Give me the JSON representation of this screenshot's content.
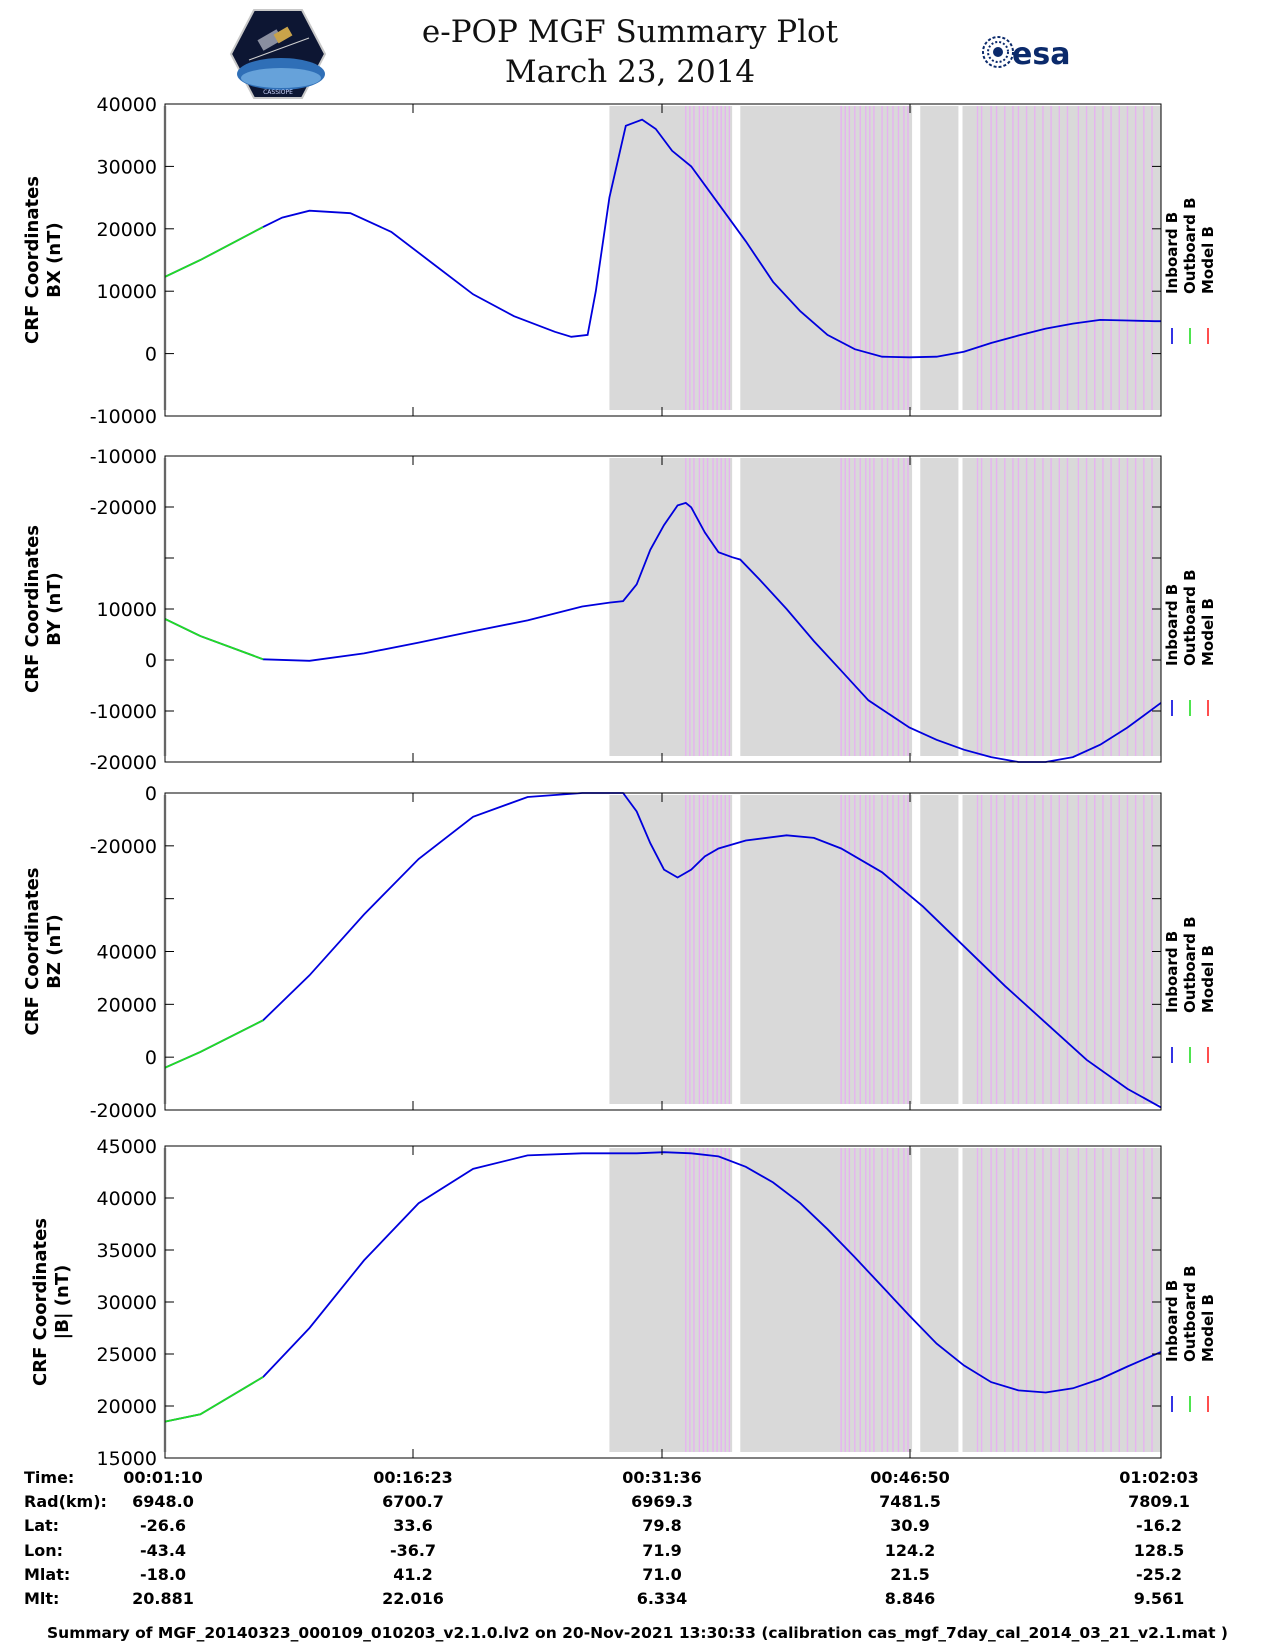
{
  "header": {
    "title": "e-POP MGF Summary Plot",
    "date": "March 23, 2014",
    "left_logo": "cassiope-mission-logo",
    "right_logo": "esa-logo",
    "esa_text": "esa"
  },
  "colors": {
    "inboard": "#0000dd",
    "outboard": "#22dd22",
    "model": "#ff2222",
    "shade": "#d9d9d9",
    "stripe": "#e6b3f0"
  },
  "chart_data": [
    {
      "type": "line",
      "ylabel_line1": "CRF Coordinates",
      "ylabel_line2": "BX (nT)",
      "ylim": [
        -10000,
        40000
      ],
      "yticks": [
        "40000",
        "30000",
        "20000",
        "10000",
        "0",
        "-10000"
      ],
      "xlim": [
        70,
        3723
      ],
      "legend": [
        "Inboard B",
        "Outboard B",
        "Model B"
      ],
      "series": [
        {
          "name": "Inboard B",
          "x": [
            0,
            200,
            430,
            500,
            600,
            750,
            900,
            1050,
            1200,
            1350,
            1500,
            1560,
            1620,
            1650,
            1700,
            1760,
            1820,
            1870,
            1930,
            2000,
            2100,
            2200,
            2300,
            2400,
            2500,
            2600,
            2700,
            2800,
            2900,
            3000,
            3100,
            3200,
            3300,
            3400,
            3500,
            3600,
            3700,
            3723
          ],
          "y": [
            12300,
            15000,
            20300,
            21800,
            22900,
            22500,
            19500,
            14500,
            9500,
            6000,
            3500,
            2700,
            3000,
            10000,
            25000,
            36500,
            37500,
            36000,
            32500,
            30000,
            24000,
            18000,
            11500,
            6800,
            3000,
            700,
            -500,
            -600,
            -500,
            300,
            1700,
            2900,
            4000,
            4800,
            5400,
            5300,
            5200,
            5200
          ]
        },
        {
          "name": "Outboard B",
          "x": [
            0,
            200,
            430
          ],
          "y": [
            12300,
            15000,
            20300
          ]
        }
      ],
      "shade_spans": [
        [
          1700,
          2150
        ],
        [
          2180,
          2810
        ],
        [
          2840,
          2980
        ],
        [
          2995,
          3723
        ]
      ],
      "stripe_x": [
        1980,
        1995,
        2010,
        2030,
        2045,
        2060,
        2080,
        2095,
        2110,
        2125,
        2140,
        2550,
        2565,
        2580,
        2600,
        2620,
        2640,
        2655,
        2670,
        2700,
        2720,
        2740,
        2760,
        2780,
        2795,
        3050,
        3065,
        3100,
        3120,
        3150,
        3180,
        3200,
        3230,
        3260,
        3290,
        3320,
        3350,
        3380,
        3420,
        3450,
        3480,
        3510,
        3540,
        3570,
        3600,
        3630,
        3660,
        3690
      ],
      "marker_x": 70
    },
    {
      "type": "line",
      "ylabel_line1": "CRF Coordinates",
      "ylabel_line2": "BY (nT)",
      "ylim": [
        -22000,
        40000
      ],
      "yticks": [
        "-10000",
        "-20000",
        "",
        "10000",
        "0",
        "-10000",
        "-20000"
      ],
      "xlim": [
        70,
        3723
      ],
      "legend": [
        "Inboard B",
        "Outboard B",
        "Model B"
      ],
      "series": [
        {
          "name": "Inboard B",
          "x": [
            0,
            200,
            430,
            600,
            800,
            1000,
            1200,
            1400,
            1600,
            1700,
            1750,
            1800,
            1850,
            1900,
            1950,
            1980,
            2000,
            2050,
            2100,
            2150,
            2180,
            2250,
            2350,
            2450,
            2550,
            2650,
            2800,
            2900,
            3000,
            3100,
            3200,
            3300,
            3400,
            3500,
            3600,
            3723
          ],
          "y": [
            7000,
            3500,
            -1200,
            -1500,
            0,
            2200,
            4500,
            6700,
            9500,
            10300,
            10600,
            14000,
            21000,
            26000,
            30000,
            30500,
            29600,
            24500,
            20500,
            19500,
            19000,
            15000,
            9000,
            2500,
            -3500,
            -9500,
            -15000,
            -17500,
            -19500,
            -21000,
            -22000,
            -22000,
            -21000,
            -18500,
            -15000,
            -10000
          ]
        },
        {
          "name": "Outboard B",
          "x": [
            0,
            200,
            430
          ],
          "y": [
            7000,
            3500,
            -1200
          ]
        }
      ],
      "shade_spans": [
        [
          1700,
          2150
        ],
        [
          2180,
          2810
        ],
        [
          2840,
          2980
        ],
        [
          2995,
          3723
        ]
      ],
      "stripe_x": [
        1980,
        1995,
        2010,
        2030,
        2045,
        2060,
        2080,
        2095,
        2110,
        2125,
        2140,
        2550,
        2565,
        2580,
        2600,
        2620,
        2640,
        2655,
        2670,
        2700,
        2720,
        2740,
        2760,
        2780,
        2795,
        3050,
        3065,
        3100,
        3120,
        3150,
        3180,
        3200,
        3230,
        3260,
        3290,
        3320,
        3350,
        3380,
        3420,
        3450,
        3480,
        3510,
        3540,
        3570,
        3600,
        3630,
        3660,
        3690
      ],
      "marker_x": 70
    },
    {
      "type": "line",
      "ylabel_line1": "CRF Coordinates",
      "ylabel_line2": "BZ (nT)",
      "ylim": [
        -20000,
        100000
      ],
      "yticks": [
        "0",
        "-20000",
        "",
        "40000",
        "20000",
        "0",
        "-20000"
      ],
      "xlim": [
        70,
        3723
      ],
      "legend": [
        "Inboard B",
        "Outboard B",
        "Model B"
      ],
      "series": [
        {
          "name": "Inboard B",
          "x": [
            0,
            200,
            430,
            600,
            800,
            1000,
            1200,
            1400,
            1600,
            1700,
            1750,
            1800,
            1850,
            1900,
            1950,
            2000,
            2050,
            2100,
            2200,
            2350,
            2450,
            2550,
            2700,
            2850,
            3000,
            3150,
            3300,
            3450,
            3600,
            3723
          ],
          "y": [
            -4000,
            2000,
            14000,
            31000,
            54000,
            75000,
            91000,
            98500,
            101500,
            102000,
            101000,
            93000,
            81000,
            71000,
            68000,
            71000,
            76000,
            79000,
            82000,
            84000,
            83000,
            79000,
            70000,
            57000,
            42000,
            27000,
            13000,
            -1000,
            -12000,
            -19000
          ]
        },
        {
          "name": "Outboard B",
          "x": [
            0,
            200,
            430
          ],
          "y": [
            -4000,
            2000,
            14000
          ]
        }
      ],
      "shade_spans": [
        [
          1700,
          2150
        ],
        [
          2180,
          2810
        ],
        [
          2840,
          2980
        ],
        [
          2995,
          3723
        ]
      ],
      "stripe_x": [
        1980,
        1995,
        2010,
        2030,
        2045,
        2060,
        2080,
        2095,
        2110,
        2125,
        2140,
        2550,
        2565,
        2580,
        2600,
        2620,
        2640,
        2655,
        2670,
        2700,
        2720,
        2740,
        2760,
        2780,
        2795,
        3050,
        3065,
        3100,
        3120,
        3150,
        3180,
        3200,
        3230,
        3260,
        3290,
        3320,
        3350,
        3380,
        3420,
        3450,
        3480,
        3510,
        3540,
        3570,
        3600,
        3630,
        3660,
        3690
      ],
      "marker_x": 70
    },
    {
      "type": "line",
      "ylabel_line1": "CRF Coordinates",
      "ylabel_line2": "|B| (nT)",
      "ylim": [
        15000,
        45000
      ],
      "yticks": [
        "45000",
        "40000",
        "35000",
        "30000",
        "25000",
        "20000",
        "15000"
      ],
      "xlim": [
        70,
        3723
      ],
      "legend": [
        "Inboard B",
        "Outboard B",
        "Model B"
      ],
      "series": [
        {
          "name": "Inboard B",
          "x": [
            0,
            200,
            430,
            600,
            800,
            1000,
            1200,
            1400,
            1600,
            1800,
            1900,
            2000,
            2100,
            2200,
            2300,
            2400,
            2500,
            2600,
            2700,
            2800,
            2900,
            3000,
            3100,
            3200,
            3300,
            3400,
            3500,
            3600,
            3723
          ],
          "y": [
            18500,
            19200,
            22800,
            27500,
            34000,
            39500,
            42800,
            44100,
            44300,
            44300,
            44400,
            44300,
            44000,
            43000,
            41500,
            39500,
            37000,
            34300,
            31500,
            28700,
            26000,
            23900,
            22300,
            21500,
            21300,
            21700,
            22600,
            23800,
            25200
          ]
        },
        {
          "name": "Outboard B",
          "x": [
            0,
            200,
            430
          ],
          "y": [
            18500,
            19200,
            22800
          ]
        }
      ],
      "shade_spans": [
        [
          1700,
          2150
        ],
        [
          2180,
          2810
        ],
        [
          2840,
          2980
        ],
        [
          2995,
          3723
        ]
      ],
      "stripe_x": [
        1980,
        1995,
        2010,
        2030,
        2045,
        2060,
        2080,
        2095,
        2110,
        2125,
        2140,
        2550,
        2565,
        2580,
        2600,
        2620,
        2640,
        2655,
        2670,
        2700,
        2720,
        2740,
        2760,
        2780,
        2795,
        3050,
        3065,
        3100,
        3120,
        3150,
        3180,
        3200,
        3230,
        3260,
        3290,
        3320,
        3350,
        3380,
        3420,
        3450,
        3480,
        3510,
        3540,
        3570,
        3600,
        3630,
        3660,
        3690
      ],
      "marker_x": 70
    }
  ],
  "ephemeris": {
    "labels": [
      "Time:",
      "Rad(km):",
      "Lat:",
      "Lon:",
      "Mlat:",
      "Mlt:"
    ],
    "columns": [
      [
        "00:01:10",
        "6948.0",
        "-26.6",
        "-43.4",
        "-18.0",
        "20.881"
      ],
      [
        "00:16:23",
        "6700.7",
        "33.6",
        "-36.7",
        "41.2",
        "22.016"
      ],
      [
        "00:31:36",
        "6969.3",
        "79.8",
        "71.9",
        "71.0",
        "6.334"
      ],
      [
        "00:46:50",
        "7481.5",
        "30.9",
        "124.2",
        "21.5",
        "8.846"
      ],
      [
        "01:02:03",
        "7809.1",
        "-16.2",
        "128.5",
        "-25.2",
        "9.561"
      ]
    ]
  },
  "footer": "Summary of MGF_20140323_000109_010203_v2.1.0.lv2 on 20-Nov-2021 13:30:33 (calibration cas_mgf_7day_cal_2014_03_21_v2.1.mat )"
}
